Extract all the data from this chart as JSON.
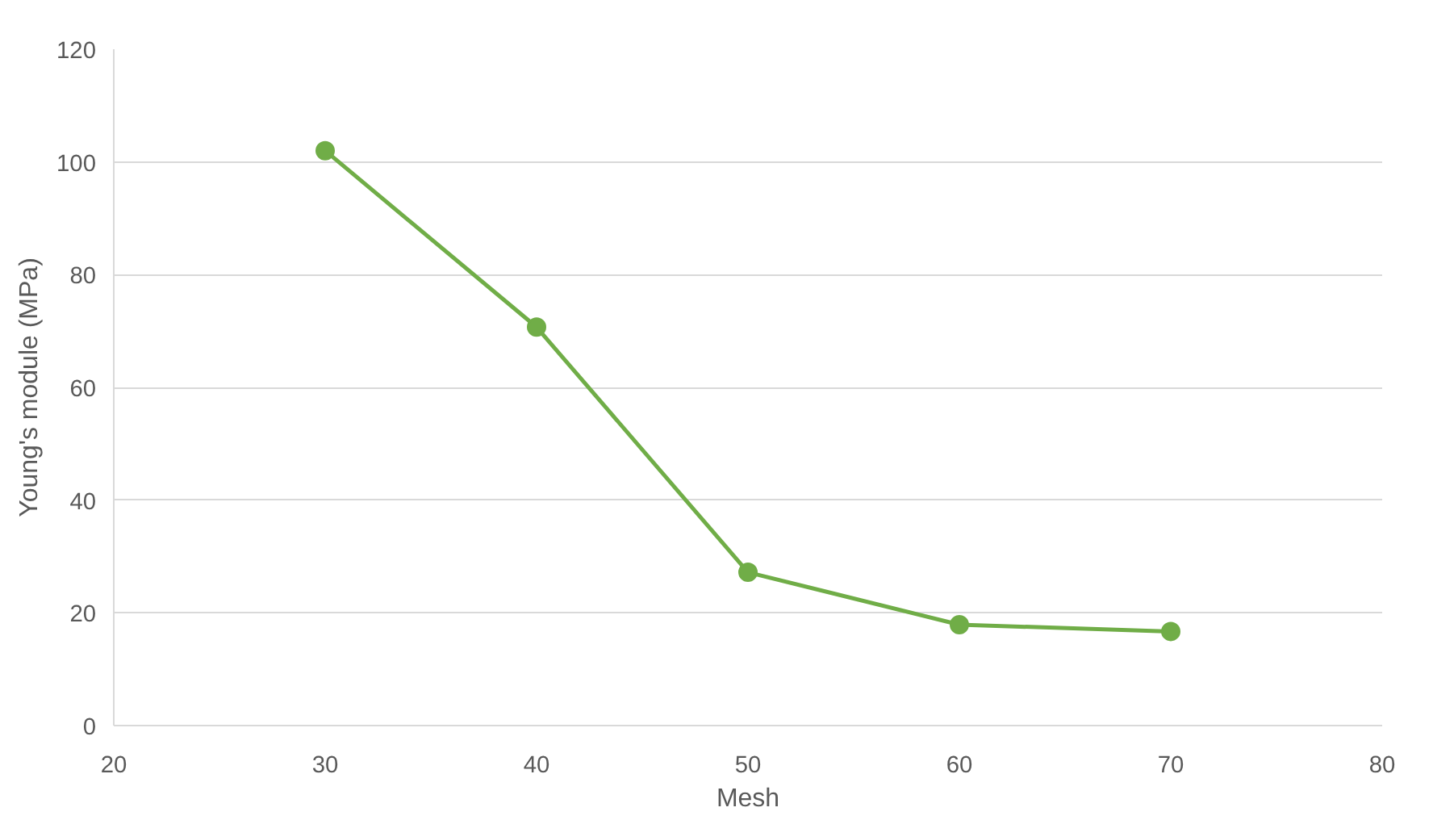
{
  "chart_data": {
    "type": "line",
    "xlabel": "Mesh",
    "ylabel": "Young's module (MPa)",
    "x": [
      30,
      40,
      50,
      60,
      70
    ],
    "series": [
      {
        "color": "#70ad47",
        "values": [
          102,
          70.7,
          27.2,
          17.9,
          16.7
        ]
      }
    ],
    "xlim": [
      20,
      80
    ],
    "xticks": [
      20,
      30,
      40,
      50,
      60,
      70,
      80
    ],
    "ylim": [
      0,
      120
    ],
    "yticks": [
      0,
      20,
      40,
      60,
      80,
      100,
      120
    ],
    "grid": "y",
    "marker": "circle",
    "line_style": "solid"
  }
}
